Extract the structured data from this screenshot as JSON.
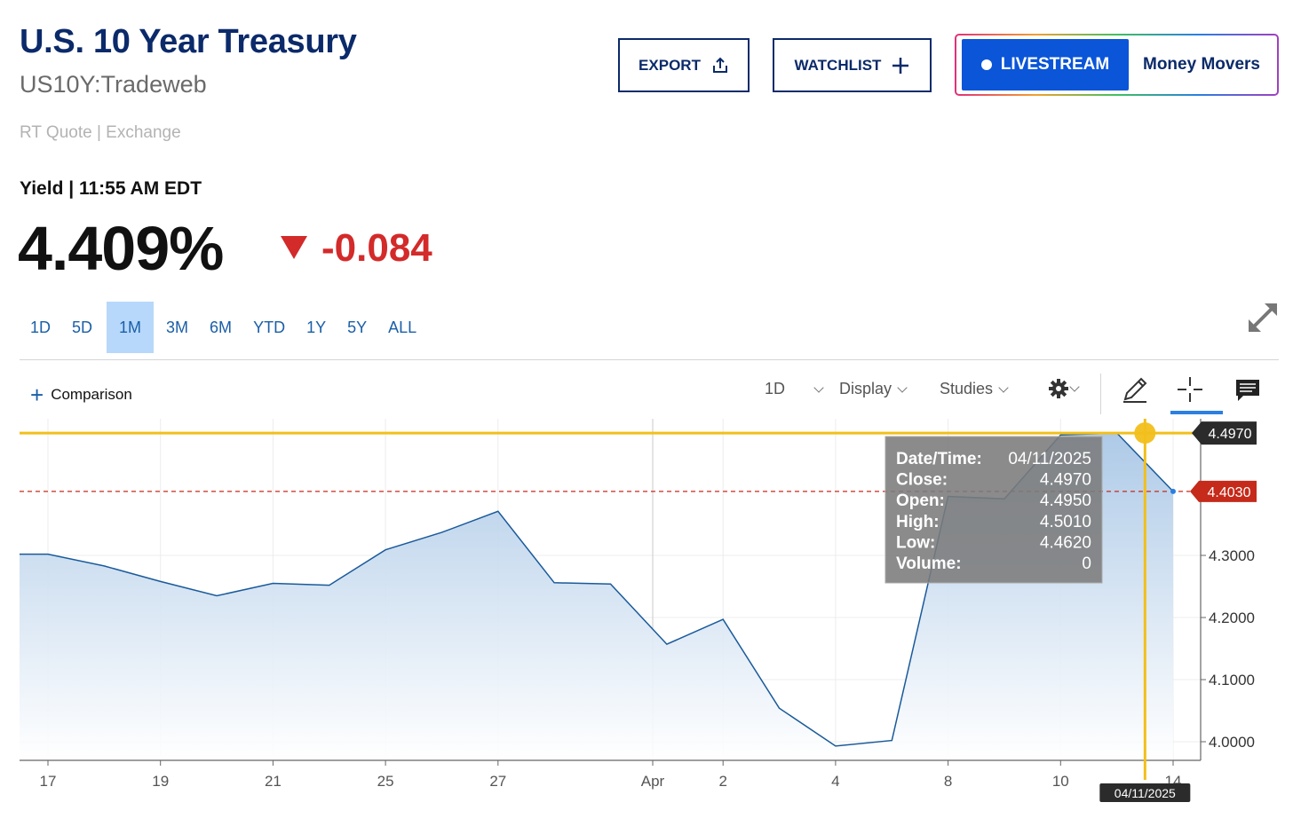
{
  "header": {
    "title": "U.S. 10 Year Treasury",
    "symbol": "US10Y:Tradeweb",
    "quote_source": "RT Quote | Exchange"
  },
  "actions": {
    "export_label": "EXPORT",
    "watchlist_label": "WATCHLIST",
    "livestream_label": "LIVESTREAM",
    "money_movers_label": "Money Movers"
  },
  "quote": {
    "yield_label": "Yield | 11:55 AM EDT",
    "price": "4.409%",
    "change": "-0.084",
    "change_color": "#d32a2a"
  },
  "range_tabs": [
    {
      "label": "1D",
      "active": false
    },
    {
      "label": "5D",
      "active": false
    },
    {
      "label": "1M",
      "active": true
    },
    {
      "label": "3M",
      "active": false
    },
    {
      "label": "6M",
      "active": false
    },
    {
      "label": "YTD",
      "active": false
    },
    {
      "label": "1Y",
      "active": false
    },
    {
      "label": "5Y",
      "active": false
    },
    {
      "label": "ALL",
      "active": false
    }
  ],
  "toolbar": {
    "comparison_label": "Comparison",
    "interval_label": "1D",
    "display_label": "Display",
    "studies_label": "Studies"
  },
  "chart_data": {
    "type": "area",
    "x": [
      "Mar 17",
      "Mar 18",
      "Mar 19",
      "Mar 20",
      "Mar 21",
      "Mar 24",
      "Mar 25",
      "Mar 26",
      "Mar 27",
      "Mar 28",
      "Mar 31",
      "Apr 1",
      "Apr 2",
      "Apr 3",
      "Apr 4",
      "Apr 7",
      "Apr 8",
      "Apr 9",
      "Apr 10",
      "Apr 11",
      "Apr 14"
    ],
    "series": [
      {
        "values": [
          4.302,
          4.283,
          4.258,
          4.235,
          4.255,
          4.252,
          4.309,
          4.337,
          4.371,
          4.256,
          4.254,
          4.157,
          4.197,
          4.054,
          3.993,
          4.002,
          4.395,
          4.391,
          4.494,
          4.497,
          4.403
        ]
      }
    ],
    "x_tick_labels": [
      {
        "label": "17",
        "index": 0
      },
      {
        "label": "19",
        "index": 2
      },
      {
        "label": "21",
        "index": 4
      },
      {
        "label": "25",
        "index": 6
      },
      {
        "label": "27",
        "index": 8
      },
      {
        "label": "Apr",
        "index": 10.75
      },
      {
        "label": "2",
        "index": 12
      },
      {
        "label": "4",
        "index": 14
      },
      {
        "label": "8",
        "index": 16
      },
      {
        "label": "10",
        "index": 18
      },
      {
        "label": "14",
        "index": 20
      }
    ],
    "y_ticks": [
      "4.3000",
      "4.2000",
      "4.1000",
      "4.0000"
    ],
    "ylim": [
      3.97,
      4.52
    ],
    "grid": true,
    "crosshair": {
      "index": 19.5,
      "value": 4.497,
      "value_label": "4.4970",
      "date_label": "04/11/2025"
    },
    "current_value": 4.403,
    "current_label": "4.4030",
    "tooltip": [
      {
        "key": "Date/Time:",
        "value": "04/11/2025"
      },
      {
        "key": "Close:",
        "value": "4.4970"
      },
      {
        "key": "Open:",
        "value": "4.4950"
      },
      {
        "key": "High:",
        "value": "4.5010"
      },
      {
        "key": "Low:",
        "value": "4.4620"
      },
      {
        "key": "Volume:",
        "value": "0"
      }
    ],
    "line_color": "#1a5a9a",
    "crosshair_color": "#f2bf1b",
    "current_color": "#c52a1a"
  }
}
